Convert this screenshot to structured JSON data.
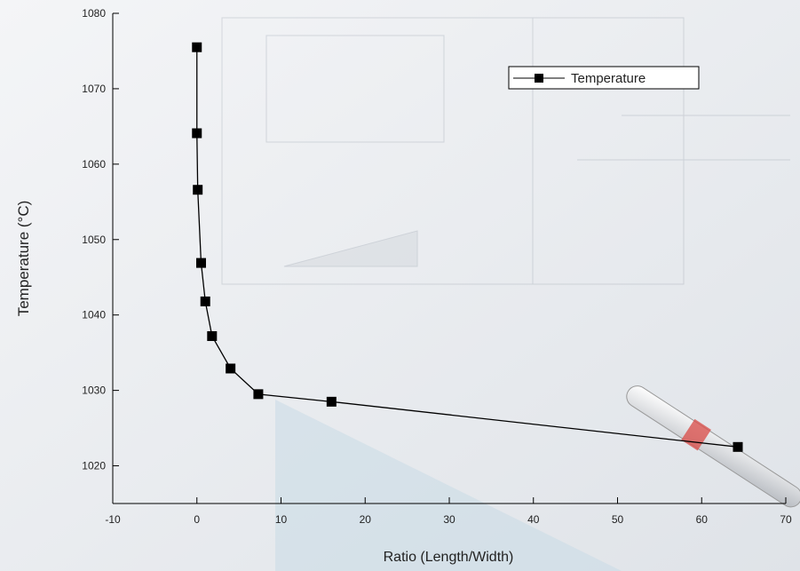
{
  "chart_data": {
    "type": "line",
    "x_label": "Ratio (Length/Width)",
    "y_label": "Temperature (°C)",
    "x": [
      0,
      0,
      0.1,
      0.5,
      1.0,
      1.8,
      4,
      7.3,
      16,
      64.3
    ],
    "series": [
      {
        "name": "Temperature",
        "color": "#000000",
        "values": [
          1075.5,
          1064.1,
          1056.6,
          1046.9,
          1041.8,
          1037.2,
          1032.9,
          1029.5,
          1028.5,
          1022.5
        ]
      }
    ],
    "xlim": [
      -10,
      70
    ],
    "xticks": [
      -10,
      0,
      10,
      20,
      30,
      40,
      50,
      60,
      70
    ],
    "ylim": [
      1015,
      1080
    ],
    "yticks": [
      1020,
      1030,
      1040,
      1050,
      1060,
      1070,
      1080
    ],
    "legend": "upper right",
    "grid": false
  }
}
